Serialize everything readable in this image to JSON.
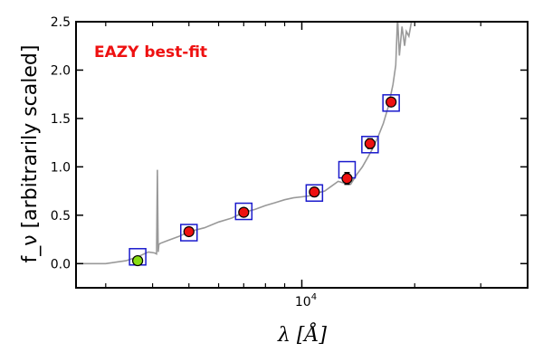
{
  "chart_data": {
    "type": "scatter",
    "title": "",
    "annotation": "EAZY best-fit",
    "annotation_color": "#ee1111",
    "xlabel": "λ [Å]",
    "ylabel": "f_ν [arbitrarily scaled]",
    "xscale": "log",
    "xlim": [
      2500,
      40000
    ],
    "ylim": [
      -0.25,
      2.5
    ],
    "yticks": [
      "0.0",
      "0.5",
      "1.0",
      "1.5",
      "2.0",
      "2.5"
    ],
    "xtick_label": "10^4",
    "grid": false,
    "template": {
      "color": "#999999",
      "x": [
        2500,
        3000,
        3400,
        3650,
        3900,
        4050,
        4100,
        4120,
        4140,
        4160,
        4200,
        4400,
        4700,
        5000,
        5500,
        6000,
        6500,
        7000,
        7500,
        8000,
        8500,
        9000,
        9500,
        10000,
        10500,
        11000,
        11500,
        12000,
        12500,
        13000,
        13500,
        14000,
        14500,
        15000,
        15500,
        16000,
        16500,
        17000,
        17500,
        17800,
        18000,
        18200,
        18500,
        18800,
        19000,
        19300,
        19500,
        19700,
        19800
      ],
      "y": [
        0.0,
        0.0,
        0.03,
        0.07,
        0.12,
        0.11,
        0.1,
        0.97,
        0.12,
        0.2,
        0.21,
        0.24,
        0.28,
        0.33,
        0.37,
        0.43,
        0.47,
        0.53,
        0.56,
        0.6,
        0.63,
        0.66,
        0.68,
        0.69,
        0.7,
        0.73,
        0.75,
        0.8,
        0.85,
        0.83,
        0.82,
        0.92,
        1.0,
        1.1,
        1.2,
        1.32,
        1.45,
        1.62,
        1.85,
        2.05,
        2.55,
        2.15,
        2.45,
        2.25,
        2.4,
        2.35,
        2.45,
        2.55,
        2.6
      ]
    },
    "model_points": {
      "marker": "square",
      "color": "#1a1acc",
      "x": [
        3650,
        5000,
        7000,
        10800,
        13200,
        15200,
        17300
      ],
      "y": [
        0.07,
        0.32,
        0.54,
        0.73,
        0.97,
        1.23,
        1.66
      ]
    },
    "observed_points": {
      "marker": "circle",
      "x": [
        3650,
        5000,
        7000,
        10800,
        13200,
        15200,
        17300
      ],
      "y": [
        0.03,
        0.33,
        0.53,
        0.74,
        0.88,
        1.24,
        1.67
      ],
      "err": [
        0.0,
        0.0,
        0.0,
        0.0,
        0.06,
        0.05,
        0.0
      ],
      "colors": [
        "#88dd11",
        "#ee1111",
        "#ee1111",
        "#ee1111",
        "#ee1111",
        "#ee1111",
        "#ee1111"
      ]
    }
  }
}
